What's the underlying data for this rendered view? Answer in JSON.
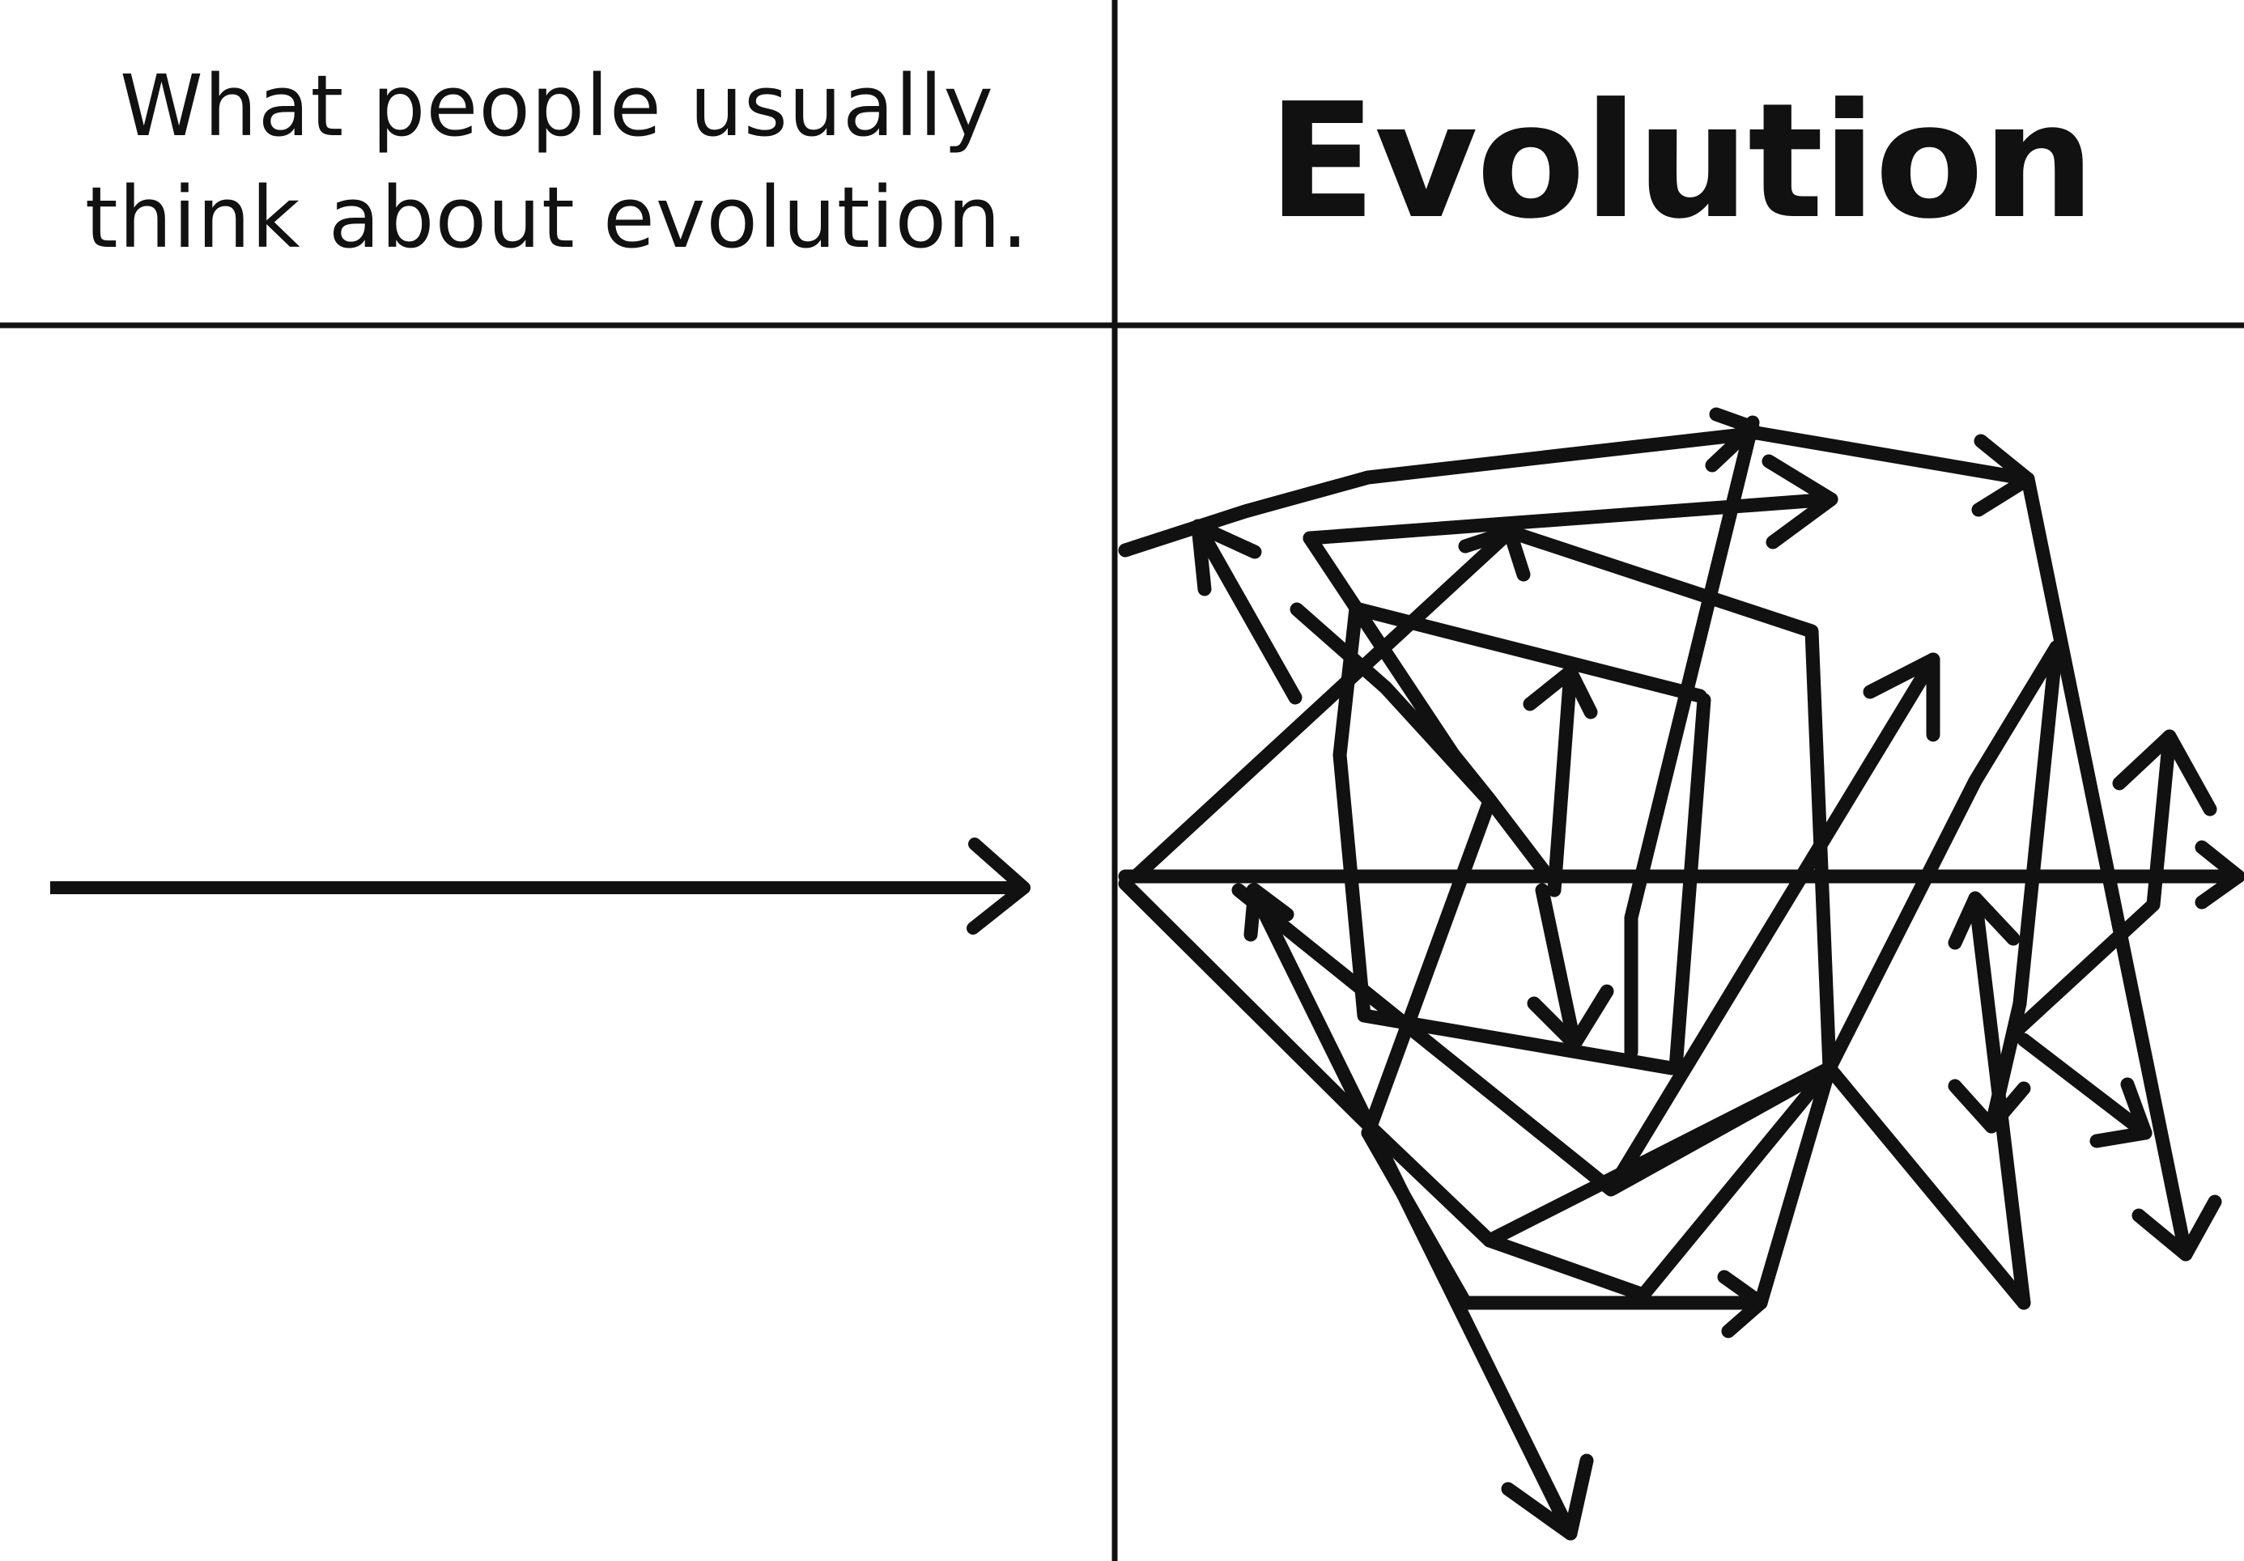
{
  "left_panel": {
    "caption_line1": "What people usually",
    "caption_line2": "think about evolution."
  },
  "right_panel": {
    "title": "Evolution"
  },
  "colors": {
    "ink": "#111111",
    "background": "#ffffff"
  },
  "icons": {
    "straight": "straight-arrow-icon",
    "tangled": "tangled-arrows-icon"
  }
}
